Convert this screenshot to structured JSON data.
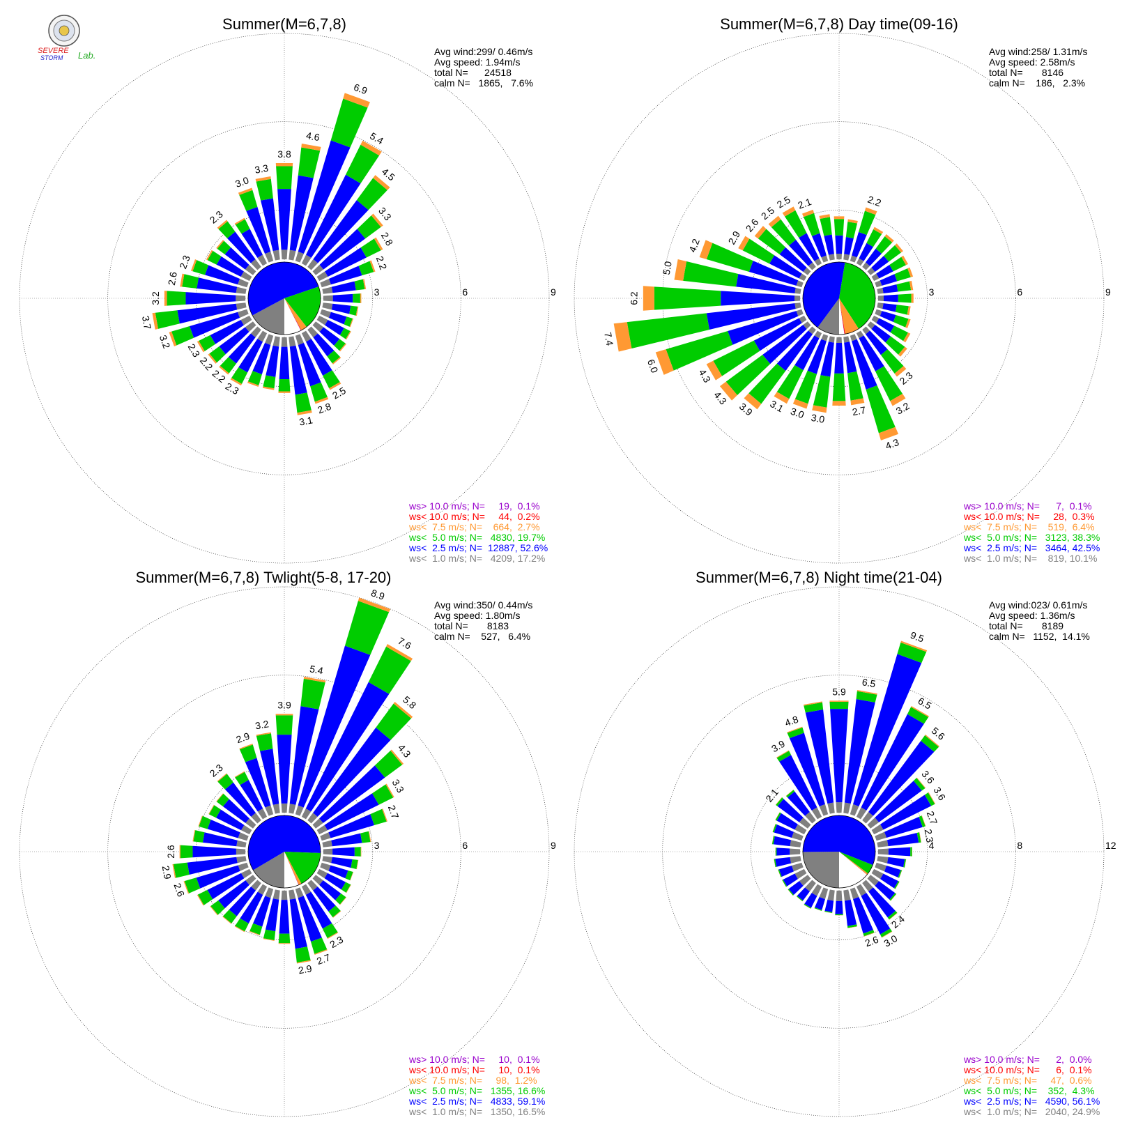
{
  "colors": {
    "ws_gt10": "#9900cc",
    "ws_lt10": "#ff0000",
    "ws_lt7_5": "#ff9933",
    "ws_lt5": "#00cc00",
    "ws_lt2_5": "#0000ff",
    "ws_lt1": "#808080"
  },
  "logo": {
    "icon": "seal-icon",
    "text_severe": "SEVERE",
    "text_storm": "STORM",
    "text_lab": "Lab."
  },
  "chart_data": [
    {
      "type": "polar-bar",
      "title": "Summer(M=6,7,8)",
      "rmax": 9,
      "ring_values": [
        3,
        6,
        9
      ],
      "ring_labels": [
        "3",
        "6",
        "9"
      ],
      "stats": {
        "avg_wind": "Avg wind:299/ 0.46m/s",
        "avg_speed": "Avg speed: 1.94m/s",
        "total_n": "total N=      24518",
        "calm_n": "calm N=   1865,   7.6%"
      },
      "legend": [
        "ws> 10.0 m/s; N=     19,  0.1%",
        "ws< 10.0 m/s; N=     44,  0.2%",
        "ws<  7.5 m/s; N=    664,  2.7%",
        "ws<  5.0 m/s; N=   4830, 19.7%",
        "ws<  2.5 m/s; N=  12887, 52.6%",
        "ws<  1.0 m/s; N=   4209, 17.2%"
      ],
      "pie": [
        0.172,
        0.526,
        0.197,
        0.027,
        0.002,
        0.001
      ],
      "directions_deg": [
        0,
        10,
        20,
        30,
        40,
        50,
        60,
        70,
        80,
        90,
        100,
        110,
        120,
        130,
        140,
        150,
        160,
        170,
        180,
        190,
        200,
        210,
        220,
        230,
        240,
        250,
        260,
        270,
        280,
        290,
        300,
        310,
        320,
        330,
        340,
        350
      ],
      "bar_totals": [
        3.8,
        4.6,
        6.9,
        5.4,
        4.5,
        3.3,
        2.8,
        2.2,
        1.7,
        1.5,
        1.4,
        1.3,
        1.4,
        1.5,
        1.7,
        2.5,
        2.8,
        3.1,
        2.2,
        2.1,
        2.1,
        2.3,
        2.2,
        2.2,
        2.3,
        3.2,
        3.7,
        3.2,
        2.6,
        2.3,
        1.9,
        1.8,
        2.3,
        2.0,
        3.0,
        3.3
      ],
      "bar_labels": [
        "3.8",
        "4.6",
        "6.9",
        "5.4",
        "4.5",
        "3.3",
        "2.8",
        "2.2",
        "",
        "",
        "",
        "",
        "",
        "",
        "",
        "2.5",
        "2.8",
        "3.1",
        "",
        "",
        "",
        "2.3",
        "2.2",
        "2.2",
        "2.3",
        "3.2",
        "3.7",
        "3.2",
        "2.6",
        "2.3",
        "",
        "",
        "2.3",
        "",
        "3.0",
        "3.3"
      ]
    },
    {
      "type": "polar-bar",
      "title": "Summer(M=6,7,8) Day time(09-16)",
      "rmax": 9,
      "ring_values": [
        3,
        6,
        9
      ],
      "ring_labels": [
        "3",
        "6",
        "9"
      ],
      "stats": {
        "avg_wind": "Avg wind:258/ 1.31m/s",
        "avg_speed": "Avg speed: 2.58m/s",
        "total_n": "total N=       8146",
        "calm_n": "calm N=    186,   2.3%"
      },
      "legend": [
        "ws> 10.0 m/s; N=      7,  0.1%",
        "ws< 10.0 m/s; N=     28,  0.3%",
        "ws<  7.5 m/s; N=    519,  6.4%",
        "ws<  5.0 m/s; N=   3123, 38.3%",
        "ws<  2.5 m/s; N=   3464, 42.5%",
        "ws<  1.0 m/s; N=    819, 10.1%"
      ],
      "pie": [
        0.101,
        0.425,
        0.383,
        0.064,
        0.003,
        0.001
      ],
      "directions_deg": [
        0,
        10,
        20,
        30,
        40,
        50,
        60,
        70,
        80,
        90,
        100,
        110,
        120,
        130,
        140,
        150,
        160,
        170,
        180,
        190,
        200,
        210,
        220,
        230,
        240,
        250,
        260,
        270,
        280,
        290,
        300,
        310,
        320,
        330,
        340,
        350
      ],
      "bar_totals": [
        1.7,
        1.6,
        2.2,
        1.6,
        1.6,
        1.6,
        1.5,
        1.5,
        1.4,
        1.4,
        1.3,
        1.4,
        1.6,
        1.8,
        2.3,
        3.2,
        4.3,
        2.7,
        2.7,
        3.0,
        3.0,
        3.1,
        3.9,
        4.3,
        4.3,
        6.0,
        7.4,
        6.2,
        5.0,
        4.2,
        2.9,
        2.6,
        2.5,
        2.5,
        2.1,
        1.8
      ],
      "bar_labels": [
        "",
        "",
        "2.2",
        "",
        "",
        "",
        "",
        "",
        "",
        "",
        "",
        "",
        "",
        "",
        "2.3",
        "3.2",
        "4.3",
        "2.7",
        "",
        "3.0",
        "3.0",
        "3.1",
        "3.9",
        "4.3",
        "4.3",
        "6.0",
        "7.4",
        "6.2",
        "5.0",
        "4.2",
        "2.9",
        "2.6",
        "2.5",
        "2.5",
        "2.1",
        ""
      ]
    },
    {
      "type": "polar-bar",
      "title": "Summer(M=6,7,8) Twlight(5-8, 17-20)",
      "rmax": 9,
      "ring_values": [
        3,
        6,
        9
      ],
      "ring_labels": [
        "3",
        "6",
        "9"
      ],
      "stats": {
        "avg_wind": "Avg wind:350/ 0.44m/s",
        "avg_speed": "Avg speed: 1.80m/s",
        "total_n": "total N=       8183",
        "calm_n": "calm N=    527,   6.4%"
      },
      "legend": [
        "ws> 10.0 m/s; N=     10,  0.1%",
        "ws< 10.0 m/s; N=     10,  0.1%",
        "ws<  7.5 m/s; N=     98,  1.2%",
        "ws<  5.0 m/s; N=   1355, 16.6%",
        "ws<  2.5 m/s; N=   4833, 59.1%",
        "ws<  1.0 m/s; N=   1350, 16.5%"
      ],
      "pie": [
        0.165,
        0.591,
        0.166,
        0.012,
        0.001,
        0.001
      ],
      "directions_deg": [
        0,
        10,
        20,
        30,
        40,
        50,
        60,
        70,
        80,
        90,
        100,
        110,
        120,
        130,
        140,
        150,
        160,
        170,
        180,
        190,
        200,
        210,
        220,
        230,
        240,
        250,
        260,
        270,
        280,
        290,
        300,
        310,
        320,
        330,
        340,
        350
      ],
      "bar_totals": [
        3.9,
        5.4,
        8.9,
        7.6,
        5.8,
        4.3,
        3.3,
        2.7,
        1.9,
        1.5,
        1.4,
        1.3,
        1.4,
        1.5,
        1.7,
        2.3,
        2.7,
        2.9,
        2.1,
        2.0,
        1.9,
        2.0,
        2.0,
        2.1,
        2.3,
        2.6,
        2.9,
        2.6,
        2.1,
        2.0,
        1.8,
        1.8,
        2.3,
        2.0,
        2.9,
        3.2
      ],
      "bar_labels": [
        "3.9",
        "5.4",
        "8.9",
        "7.6",
        "5.8",
        "4.3",
        "3.3",
        "2.7",
        "",
        "",
        "",
        "",
        "",
        "",
        "",
        "2.3",
        "2.7",
        "2.9",
        "",
        "",
        "",
        "",
        "",
        "",
        "",
        "2.6",
        "2.9",
        "2.6",
        "",
        "",
        "",
        "",
        "2.3",
        "",
        "2.9",
        "3.2"
      ]
    },
    {
      "type": "polar-bar",
      "title": "Summer(M=6,7,8) Night time(21-04)",
      "rmax": 12,
      "ring_values": [
        4,
        8,
        12
      ],
      "ring_labels": [
        "4",
        "8",
        "12"
      ],
      "stats": {
        "avg_wind": "Avg wind:023/ 0.61m/s",
        "avg_speed": "Avg speed: 1.36m/s",
        "total_n": "total N=       8189",
        "calm_n": "calm N=   1152,  14.1%"
      },
      "legend": [
        "ws> 10.0 m/s; N=      2,  0.0%",
        "ws< 10.0 m/s; N=      6,  0.1%",
        "ws<  7.5 m/s; N=     47,  0.6%",
        "ws<  5.0 m/s; N=    352,  4.3%",
        "ws<  2.5 m/s; N=   4590, 56.1%",
        "ws<  1.0 m/s; N=   2040, 24.9%"
      ],
      "pie": [
        0.249,
        0.561,
        0.043,
        0.006,
        0.001,
        0.0
      ],
      "directions_deg": [
        0,
        10,
        20,
        30,
        40,
        50,
        60,
        70,
        80,
        90,
        100,
        110,
        120,
        130,
        140,
        150,
        160,
        170,
        180,
        190,
        200,
        210,
        220,
        230,
        240,
        250,
        260,
        270,
        280,
        290,
        300,
        310,
        320,
        330,
        340,
        350
      ],
      "bar_totals": [
        5.9,
        6.5,
        9.5,
        6.5,
        5.6,
        3.6,
        3.6,
        2.7,
        2.3,
        1.8,
        1.5,
        1.4,
        1.5,
        1.7,
        2.4,
        3.0,
        2.6,
        2.0,
        1.3,
        1.2,
        1.2,
        1.3,
        1.2,
        1.3,
        1.3,
        1.3,
        1.4,
        1.3,
        1.5,
        1.6,
        1.7,
        2.1,
        2.0,
        3.9,
        4.8,
        5.9
      ],
      "bar_labels": [
        "5.9",
        "6.5",
        "9.5",
        "6.5",
        "5.6",
        "3.6",
        "3.6",
        "2.7",
        "2.3",
        "",
        "",
        "",
        "",
        "",
        "2.4",
        "3.0",
        "2.6",
        "",
        "",
        "",
        "",
        "",
        "",
        "",
        "",
        "",
        "",
        "",
        "",
        "",
        "",
        "2.1",
        "",
        "3.9",
        "4.8",
        ""
      ]
    }
  ]
}
